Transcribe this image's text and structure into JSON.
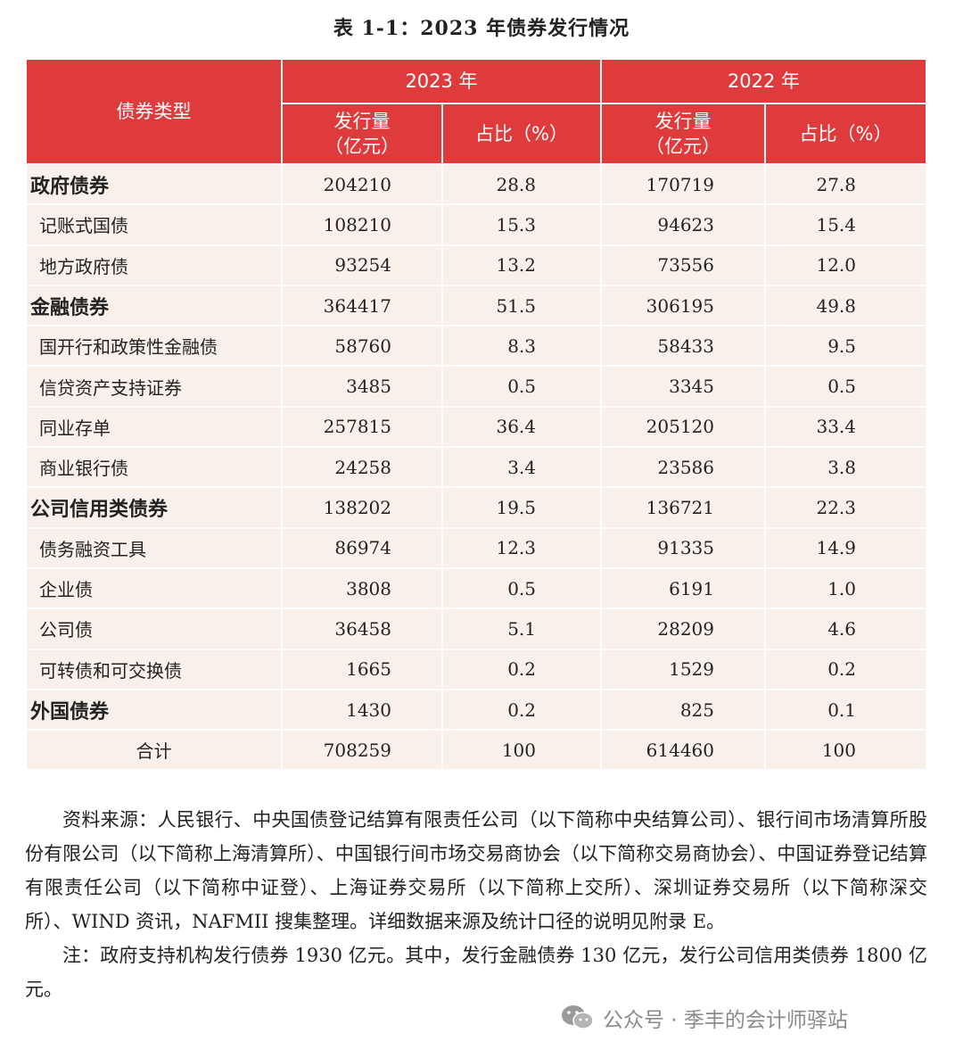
{
  "title": "表 1-1：2023 年债券发行情况",
  "header": {
    "type_label": "债券类型",
    "year_2023": "2023 年",
    "year_2022": "2022 年",
    "volume_label_line1": "发行量",
    "volume_label_line2": "（亿元）",
    "share_label": "占比（%）"
  },
  "rows": [
    {
      "name": "政府债券",
      "v23": "204210",
      "p23": "28.8",
      "v22": "170719",
      "p22": "27.8"
    },
    {
      "name": "记账式国债",
      "v23": "108210",
      "p23": "15.3",
      "v22": "94623",
      "p22": "15.4"
    },
    {
      "name": "地方政府债",
      "v23": "93254",
      "p23": "13.2",
      "v22": "73556",
      "p22": "12.0"
    },
    {
      "name": "金融债券",
      "v23": "364417",
      "p23": "51.5",
      "v22": "306195",
      "p22": "49.8"
    },
    {
      "name": "国开行和政策性金融债",
      "v23": "58760",
      "p23": "8.3",
      "v22": "58433",
      "p22": "9.5"
    },
    {
      "name": "信贷资产支持证券",
      "v23": "3485",
      "p23": "0.5",
      "v22": "3345",
      "p22": "0.5"
    },
    {
      "name": "同业存单",
      "v23": "257815",
      "p23": "36.4",
      "v22": "205120",
      "p22": "33.4"
    },
    {
      "name": "商业银行债",
      "v23": "24258",
      "p23": "3.4",
      "v22": "23586",
      "p22": "3.8"
    },
    {
      "name": "公司信用类债券",
      "v23": "138202",
      "p23": "19.5",
      "v22": "136721",
      "p22": "22.3"
    },
    {
      "name": "债务融资工具",
      "v23": "86974",
      "p23": "12.3",
      "v22": "91335",
      "p22": "14.9"
    },
    {
      "name": "企业债",
      "v23": "3808",
      "p23": "0.5",
      "v22": "6191",
      "p22": "1.0"
    },
    {
      "name": "公司债",
      "v23": "36458",
      "p23": "5.1",
      "v22": "28209",
      "p22": "4.6"
    },
    {
      "name": "可转债和可交换债",
      "v23": "1665",
      "p23": "0.2",
      "v22": "1529",
      "p22": "0.2"
    },
    {
      "name": "外国债券",
      "v23": "1430",
      "p23": "0.2",
      "v22": "825",
      "p22": "0.1"
    },
    {
      "name": "合计",
      "v23": "708259",
      "p23": "100",
      "v22": "614460",
      "p22": "100"
    }
  ],
  "notes": {
    "source": "资料来源：人民银行、中央国债登记结算有限责任公司（以下简称中央结算公司）、银行间市场清算所股份有限公司（以下简称上海清算所）、中国银行间市场交易商协会（以下简称交易商协会）、中国证券登记结算有限责任公司（以下简称中证登）、上海证券交易所（以下简称上交所）、深圳证券交易所（以下简称深交所）、WIND 资讯，NAFMII 搜集整理。详细数据来源及统计口径的说明见附录 E。",
    "remark": "注：政府支持机构发行债券 1930 亿元。其中，发行金融债券 130 亿元，发行公司信用类债券 1800 亿元。"
  },
  "watermark": {
    "text": "公众号 · 季丰的会计师驿站",
    "icon": "wechat-icon"
  }
}
